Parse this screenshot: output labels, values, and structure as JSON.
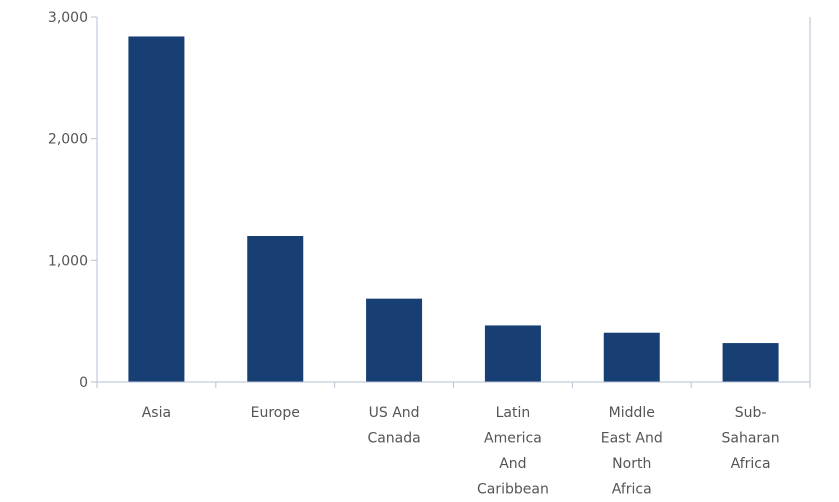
{
  "chart_data": {
    "type": "bar",
    "title": "",
    "xlabel": "",
    "ylabel": "",
    "categories": [
      "Asia",
      "Europe",
      "US And Canada",
      "Latin America And Caribbean",
      "Middle East And North Africa",
      "Sub-Saharan Africa"
    ],
    "category_label_lines": [
      [
        "Asia"
      ],
      [
        "Europe"
      ],
      [
        "US And",
        "Canada"
      ],
      [
        "Latin",
        "America",
        "And",
        "Caribbean"
      ],
      [
        "Middle",
        "East And",
        "North",
        "Africa"
      ],
      [
        "Sub-",
        "Saharan",
        "Africa"
      ]
    ],
    "values": [
      2840,
      1200,
      685,
      465,
      405,
      320
    ],
    "ylim": [
      0,
      3000
    ],
    "yticks": [
      0,
      1000,
      2000,
      3000
    ],
    "ytick_labels": [
      "0",
      "1,000",
      "2,000",
      "3,000"
    ],
    "grid": false,
    "legend": "none",
    "bar_color": "#173f73",
    "axis_color": "#b6c2d6"
  }
}
